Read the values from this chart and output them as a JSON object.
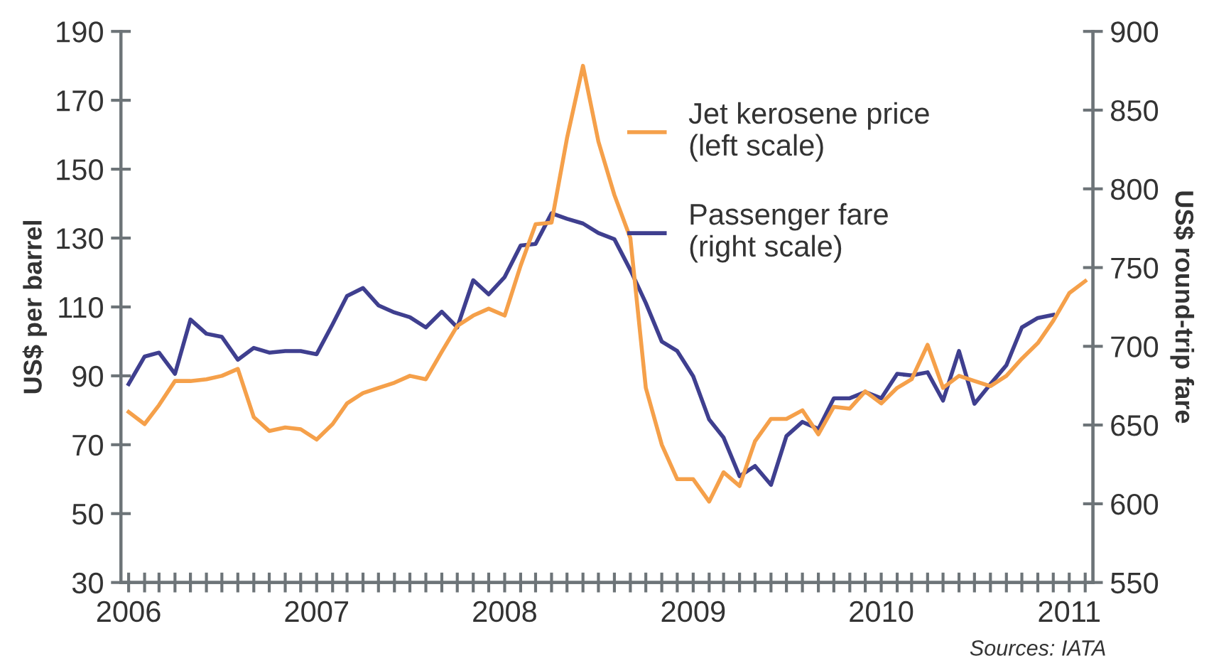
{
  "chart_data": {
    "type": "line",
    "ylabel": "US$ per barrel",
    "y2label": "US$ round-trip fare",
    "annotations": [
      "Sources: IATA"
    ],
    "x": [
      "2006-01",
      "2006-02",
      "2006-03",
      "2006-04",
      "2006-05",
      "2006-06",
      "2006-07",
      "2006-08",
      "2006-09",
      "2006-10",
      "2006-11",
      "2006-12",
      "2007-01",
      "2007-02",
      "2007-03",
      "2007-04",
      "2007-05",
      "2007-06",
      "2007-07",
      "2007-08",
      "2007-09",
      "2007-10",
      "2007-11",
      "2007-12",
      "2008-01",
      "2008-02",
      "2008-03",
      "2008-04",
      "2008-05",
      "2008-06",
      "2008-07",
      "2008-08",
      "2008-09",
      "2008-10",
      "2008-11",
      "2008-12",
      "2009-01",
      "2009-02",
      "2009-03",
      "2009-04",
      "2009-05",
      "2009-06",
      "2009-07",
      "2009-08",
      "2009-09",
      "2009-10",
      "2009-11",
      "2009-12",
      "2010-01",
      "2010-02",
      "2010-03",
      "2010-04",
      "2010-05",
      "2010-06",
      "2010-07",
      "2010-08",
      "2010-09",
      "2010-10",
      "2010-11",
      "2010-12",
      "2011-01",
      "2011-02"
    ],
    "series": [
      {
        "name": "Jet kerosene price\n(left scale)",
        "color": "#f5a04a",
        "values": [
          79.5,
          76,
          81.5,
          88.5,
          88.5,
          89,
          90,
          92,
          78,
          74,
          75,
          74.5,
          71.5,
          76,
          82,
          85,
          86.5,
          88,
          90,
          89,
          97,
          104.5,
          107.5,
          109.5,
          107.5,
          122,
          134,
          134.5,
          159,
          180,
          158,
          142.5,
          130,
          86.5,
          70,
          60,
          60,
          53.5,
          62,
          58,
          71,
          77.5,
          77.5,
          80,
          73,
          81,
          80.5,
          85.5,
          82,
          86.5,
          89,
          99,
          86.5,
          90,
          88.5,
          87,
          90,
          95,
          99.5,
          106,
          114,
          117.5
        ]
      },
      {
        "name": "Passenger fare\n(right scale)",
        "color": "#3f3f8f",
        "axis": "y2",
        "values": [
          676,
          693.5,
          696,
          682.5,
          717,
          708,
          706,
          691.5,
          699,
          696,
          697,
          697,
          695,
          714,
          732,
          737,
          726,
          721.5,
          718.5,
          712,
          722,
          712,
          742,
          733,
          744,
          764,
          765,
          784.5,
          781,
          778,
          772,
          768,
          748.5,
          727.5,
          703,
          697,
          681,
          653.5,
          642,
          617.5,
          624,
          612,
          643,
          652,
          647.5,
          667,
          667,
          671,
          667,
          682.5,
          681.5,
          683.5,
          665.5,
          697,
          663.5,
          676,
          688,
          712,
          718,
          720,
          null,
          null
        ]
      }
    ],
    "xlim": [
      "2005-12-17",
      "2011-02-16"
    ],
    "xticks": [
      {
        "value": "2006",
        "label": "2006"
      },
      {
        "value": "2006-02",
        "label": null
      },
      {
        "value": "2006-03",
        "label": null
      },
      {
        "value": "2006-04",
        "label": null
      },
      {
        "value": "2006-05",
        "label": null
      },
      {
        "value": "2006-06",
        "label": null
      },
      {
        "value": "2006-07",
        "label": null
      },
      {
        "value": "2006-08",
        "label": null
      },
      {
        "value": "2006-09",
        "label": null
      },
      {
        "value": "2006-10",
        "label": null
      },
      {
        "value": "2006-11",
        "label": null
      },
      {
        "value": "2006-12",
        "label": null
      },
      {
        "value": "2007",
        "label": "2007"
      },
      {
        "value": "2007-02",
        "label": null
      },
      {
        "value": "2007-03",
        "label": null
      },
      {
        "value": "2007-04",
        "label": null
      },
      {
        "value": "2007-05",
        "label": null
      },
      {
        "value": "2007-06",
        "label": null
      },
      {
        "value": "2007-07",
        "label": null
      },
      {
        "value": "2007-08",
        "label": null
      },
      {
        "value": "2007-09",
        "label": null
      },
      {
        "value": "2007-10",
        "label": null
      },
      {
        "value": "2007-11",
        "label": null
      },
      {
        "value": "2007-12",
        "label": null
      },
      {
        "value": "2008",
        "label": "2008"
      },
      {
        "value": "2008-02",
        "label": null
      },
      {
        "value": "2008-03",
        "label": null
      },
      {
        "value": "2008-04",
        "label": null
      },
      {
        "value": "2008-05",
        "label": null
      },
      {
        "value": "2008-06",
        "label": null
      },
      {
        "value": "2008-07",
        "label": null
      },
      {
        "value": "2008-08",
        "label": null
      },
      {
        "value": "2008-09",
        "label": null
      },
      {
        "value": "2008-10",
        "label": null
      },
      {
        "value": "2008-11",
        "label": null
      },
      {
        "value": "2008-12",
        "label": null
      },
      {
        "value": "2009",
        "label": "2009"
      },
      {
        "value": "2009-02",
        "label": null
      },
      {
        "value": "2009-03",
        "label": null
      },
      {
        "value": "2009-04",
        "label": null
      },
      {
        "value": "2009-05",
        "label": null
      },
      {
        "value": "2009-06",
        "label": null
      },
      {
        "value": "2009-07",
        "label": null
      },
      {
        "value": "2009-08",
        "label": null
      },
      {
        "value": "2009-09",
        "label": null
      },
      {
        "value": "2009-10",
        "label": null
      },
      {
        "value": "2009-11",
        "label": null
      },
      {
        "value": "2009-12",
        "label": null
      },
      {
        "value": "2010",
        "label": "2010"
      },
      {
        "value": "2010-02",
        "label": null
      },
      {
        "value": "2010-03",
        "label": null
      },
      {
        "value": "2010-04",
        "label": null
      },
      {
        "value": "2010-05",
        "label": null
      },
      {
        "value": "2010-06",
        "label": null
      },
      {
        "value": "2010-07",
        "label": null
      },
      {
        "value": "2010-08",
        "label": null
      },
      {
        "value": "2010-09",
        "label": null
      },
      {
        "value": "2010-10",
        "label": null
      },
      {
        "value": "2010-11",
        "label": null
      },
      {
        "value": "2010-12",
        "label": null
      },
      {
        "value": "2011",
        "label": "2011"
      },
      {
        "value": "2011-02",
        "label": null
      }
    ],
    "ylim": [
      30,
      190
    ],
    "yticks": [
      30,
      50,
      70,
      90,
      110,
      130,
      150,
      170,
      190
    ],
    "y2lim": [
      550,
      900
    ],
    "y2ticks": [
      550,
      600,
      650,
      700,
      750,
      800,
      850,
      900
    ],
    "grid": false,
    "legend": "top right",
    "marker": "none",
    "line_style": "solid"
  }
}
